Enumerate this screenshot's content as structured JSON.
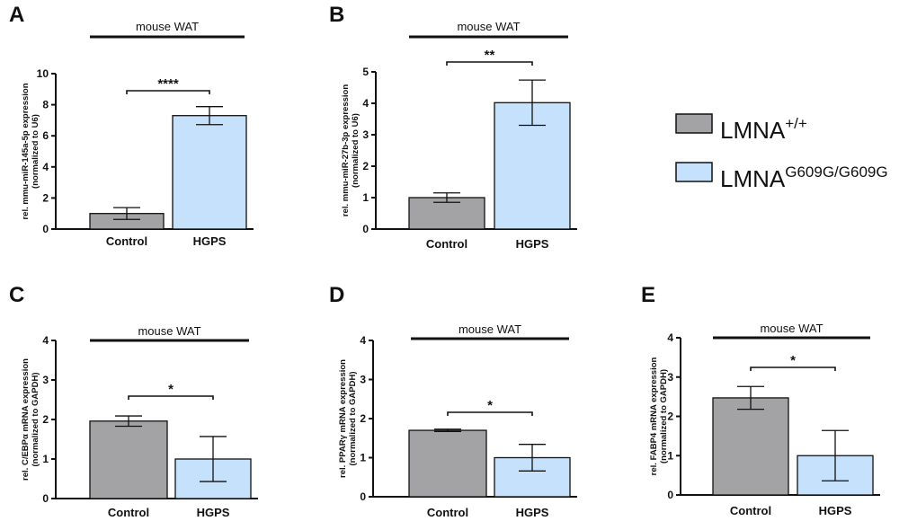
{
  "colors": {
    "control": "#a3a3a6",
    "hgps": "#c6e1fb",
    "stroke": "#111111"
  },
  "legend": {
    "items": [
      {
        "base": "LMNA",
        "sup": "+/+",
        "color": "#a3a3a6"
      },
      {
        "base": "LMNA",
        "sup": "G609G/G609G",
        "color": "#c6e1fb"
      }
    ]
  },
  "chart_data": [
    {
      "panel": "A",
      "type": "bar",
      "group_label": "mouse WAT",
      "ylabel": [
        "rel. mmu-miR-145a-5p expression",
        "(normalized to U6)"
      ],
      "categories": [
        "Control",
        "HGPS"
      ],
      "values": [
        1.0,
        7.3
      ],
      "errors": [
        0.38,
        0.58
      ],
      "ylim": [
        0,
        10
      ],
      "yticks": [
        0,
        2,
        4,
        6,
        8,
        10
      ],
      "significance": "****"
    },
    {
      "panel": "B",
      "type": "bar",
      "group_label": "mouse WAT",
      "ylabel": [
        "rel. mmu-miR-27b-3p expression",
        "(normalized to U6)"
      ],
      "categories": [
        "Control",
        "HGPS"
      ],
      "values": [
        1.0,
        4.02
      ],
      "errors": [
        0.15,
        0.72
      ],
      "ylim": [
        0,
        5
      ],
      "yticks": [
        0,
        1,
        2,
        3,
        4,
        5
      ],
      "significance": "**"
    },
    {
      "panel": "C",
      "type": "bar",
      "group_label": "mouse WAT",
      "ylabel": [
        "rel. C/EBPα  mRNA expression",
        "(normalized to GAPDH)"
      ],
      "categories": [
        "Control",
        "HGPS"
      ],
      "values": [
        1.96,
        1.0
      ],
      "errors": [
        0.13,
        0.57
      ],
      "ylim": [
        0,
        4
      ],
      "yticks": [
        0,
        1,
        2,
        3,
        4
      ],
      "significance": "*"
    },
    {
      "panel": "D",
      "type": "bar",
      "group_label": "mouse WAT",
      "ylabel": [
        "rel. PPARγ  mRNA expression",
        "(normalized to GAPDH)"
      ],
      "categories": [
        "Control",
        "HGPS"
      ],
      "values": [
        1.7,
        1.0
      ],
      "errors": [
        0.03,
        0.34
      ],
      "ylim": [
        0,
        4
      ],
      "yticks": [
        0,
        1,
        2,
        3,
        4
      ],
      "significance": "*"
    },
    {
      "panel": "E",
      "type": "bar",
      "group_label": "mouse WAT",
      "ylabel": [
        "rel. FABP4 mRNA expression",
        "(normalized to GAPDH)"
      ],
      "categories": [
        "Control",
        "HGPS"
      ],
      "values": [
        2.47,
        1.0
      ],
      "errors": [
        0.29,
        0.64
      ],
      "ylim": [
        0,
        4
      ],
      "yticks": [
        0,
        1,
        2,
        3,
        4
      ],
      "significance": "*"
    }
  ]
}
